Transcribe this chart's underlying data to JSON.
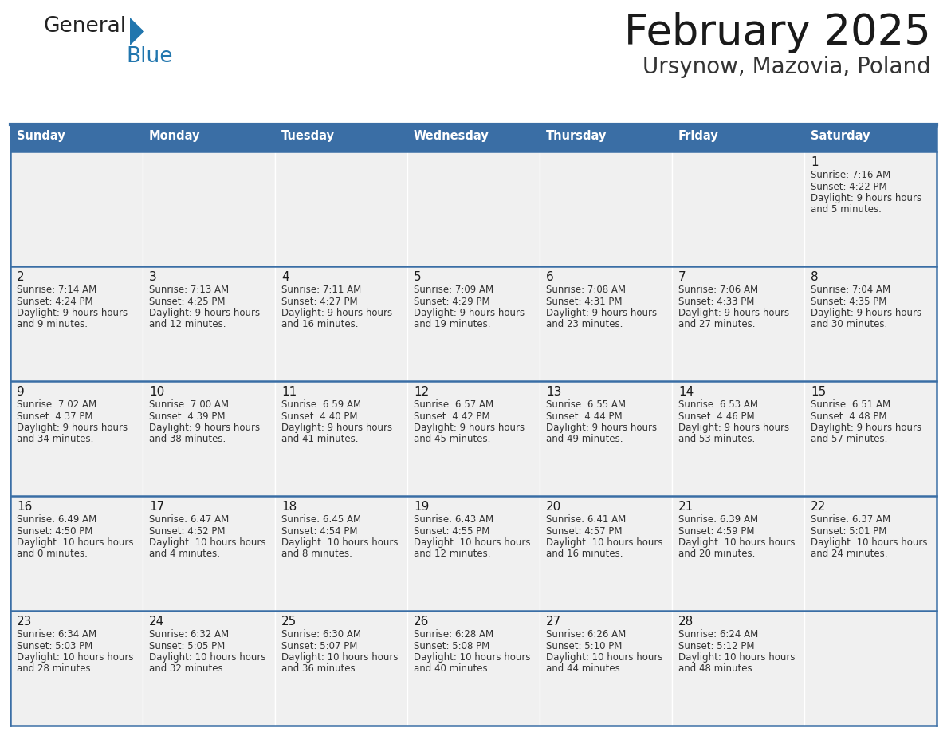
{
  "title": "February 2025",
  "subtitle": "Ursynow, Mazovia, Poland",
  "header_color": "#3A6EA5",
  "header_text_color": "#FFFFFF",
  "cell_bg": "#F0F0F0",
  "border_color": "#3A6EA5",
  "day_names": [
    "Sunday",
    "Monday",
    "Tuesday",
    "Wednesday",
    "Thursday",
    "Friday",
    "Saturday"
  ],
  "title_color": "#1a1a1a",
  "subtitle_color": "#333333",
  "day_number_color": "#1a1a1a",
  "info_text_color": "#333333",
  "logo_text_color": "#222222",
  "logo_blue_color": "#2176AE",
  "calendar_data": [
    [
      null,
      null,
      null,
      null,
      null,
      null,
      {
        "day": 1,
        "sunrise": "7:16 AM",
        "sunset": "4:22 PM",
        "daylight": "9 hours and 5 minutes"
      }
    ],
    [
      {
        "day": 2,
        "sunrise": "7:14 AM",
        "sunset": "4:24 PM",
        "daylight": "9 hours and 9 minutes"
      },
      {
        "day": 3,
        "sunrise": "7:13 AM",
        "sunset": "4:25 PM",
        "daylight": "9 hours and 12 minutes"
      },
      {
        "day": 4,
        "sunrise": "7:11 AM",
        "sunset": "4:27 PM",
        "daylight": "9 hours and 16 minutes"
      },
      {
        "day": 5,
        "sunrise": "7:09 AM",
        "sunset": "4:29 PM",
        "daylight": "9 hours and 19 minutes"
      },
      {
        "day": 6,
        "sunrise": "7:08 AM",
        "sunset": "4:31 PM",
        "daylight": "9 hours and 23 minutes"
      },
      {
        "day": 7,
        "sunrise": "7:06 AM",
        "sunset": "4:33 PM",
        "daylight": "9 hours and 27 minutes"
      },
      {
        "day": 8,
        "sunrise": "7:04 AM",
        "sunset": "4:35 PM",
        "daylight": "9 hours and 30 minutes"
      }
    ],
    [
      {
        "day": 9,
        "sunrise": "7:02 AM",
        "sunset": "4:37 PM",
        "daylight": "9 hours and 34 minutes"
      },
      {
        "day": 10,
        "sunrise": "7:00 AM",
        "sunset": "4:39 PM",
        "daylight": "9 hours and 38 minutes"
      },
      {
        "day": 11,
        "sunrise": "6:59 AM",
        "sunset": "4:40 PM",
        "daylight": "9 hours and 41 minutes"
      },
      {
        "day": 12,
        "sunrise": "6:57 AM",
        "sunset": "4:42 PM",
        "daylight": "9 hours and 45 minutes"
      },
      {
        "day": 13,
        "sunrise": "6:55 AM",
        "sunset": "4:44 PM",
        "daylight": "9 hours and 49 minutes"
      },
      {
        "day": 14,
        "sunrise": "6:53 AM",
        "sunset": "4:46 PM",
        "daylight": "9 hours and 53 minutes"
      },
      {
        "day": 15,
        "sunrise": "6:51 AM",
        "sunset": "4:48 PM",
        "daylight": "9 hours and 57 minutes"
      }
    ],
    [
      {
        "day": 16,
        "sunrise": "6:49 AM",
        "sunset": "4:50 PM",
        "daylight": "10 hours and 0 minutes"
      },
      {
        "day": 17,
        "sunrise": "6:47 AM",
        "sunset": "4:52 PM",
        "daylight": "10 hours and 4 minutes"
      },
      {
        "day": 18,
        "sunrise": "6:45 AM",
        "sunset": "4:54 PM",
        "daylight": "10 hours and 8 minutes"
      },
      {
        "day": 19,
        "sunrise": "6:43 AM",
        "sunset": "4:55 PM",
        "daylight": "10 hours and 12 minutes"
      },
      {
        "day": 20,
        "sunrise": "6:41 AM",
        "sunset": "4:57 PM",
        "daylight": "10 hours and 16 minutes"
      },
      {
        "day": 21,
        "sunrise": "6:39 AM",
        "sunset": "4:59 PM",
        "daylight": "10 hours and 20 minutes"
      },
      {
        "day": 22,
        "sunrise": "6:37 AM",
        "sunset": "5:01 PM",
        "daylight": "10 hours and 24 minutes"
      }
    ],
    [
      {
        "day": 23,
        "sunrise": "6:34 AM",
        "sunset": "5:03 PM",
        "daylight": "10 hours and 28 minutes"
      },
      {
        "day": 24,
        "sunrise": "6:32 AM",
        "sunset": "5:05 PM",
        "daylight": "10 hours and 32 minutes"
      },
      {
        "day": 25,
        "sunrise": "6:30 AM",
        "sunset": "5:07 PM",
        "daylight": "10 hours and 36 minutes"
      },
      {
        "day": 26,
        "sunrise": "6:28 AM",
        "sunset": "5:08 PM",
        "daylight": "10 hours and 40 minutes"
      },
      {
        "day": 27,
        "sunrise": "6:26 AM",
        "sunset": "5:10 PM",
        "daylight": "10 hours and 44 minutes"
      },
      {
        "day": 28,
        "sunrise": "6:24 AM",
        "sunset": "5:12 PM",
        "daylight": "10 hours and 48 minutes"
      },
      null
    ]
  ],
  "figsize": [
    11.88,
    9.18
  ],
  "dpi": 100
}
